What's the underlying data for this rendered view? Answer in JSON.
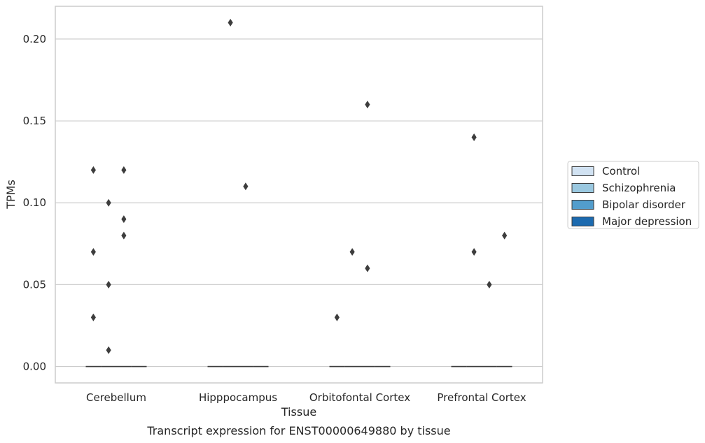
{
  "chart_data": {
    "type": "box",
    "caption": "Transcript expression for ENST00000649880 by tissue",
    "xlabel": "Tissue",
    "ylabel": "TPMs",
    "ylim": [
      -0.01,
      0.22
    ],
    "yticks": [
      0.0,
      0.05,
      0.1,
      0.15,
      0.2
    ],
    "ytick_labels": [
      "0.00",
      "0.05",
      "0.10",
      "0.15",
      "0.20"
    ],
    "grid": true,
    "legend_position": "right",
    "categories": [
      "Cerebellum",
      "Hipppocampus",
      "Orbitofontal Cortex",
      "Prefrontal Cortex"
    ],
    "series": [
      {
        "name": "Control",
        "color": "#d1e2f2",
        "median": [
          0,
          0,
          0,
          0
        ],
        "outliers": [
          [
            0.12,
            0.07,
            0.03
          ],
          [],
          [
            0.03
          ],
          []
        ]
      },
      {
        "name": "Schizophrenia",
        "color": "#9ac8e0",
        "median": [
          0,
          0,
          0,
          0
        ],
        "outliers": [
          [
            0.1,
            0.05,
            0.01
          ],
          [
            0.21
          ],
          [
            0.07
          ],
          [
            0.14,
            0.07
          ]
        ]
      },
      {
        "name": "Bipolar disorder",
        "color": "#529dcc",
        "median": [
          0,
          0,
          0,
          0
        ],
        "outliers": [
          [
            0.12,
            0.09,
            0.08
          ],
          [
            0.11
          ],
          [
            0.16,
            0.06
          ],
          [
            0.05
          ]
        ]
      },
      {
        "name": "Major depression",
        "color": "#1c6aaf",
        "median": [
          0,
          0,
          0,
          0
        ],
        "outliers": [
          [],
          [],
          [],
          [
            0.08
          ]
        ]
      }
    ]
  }
}
